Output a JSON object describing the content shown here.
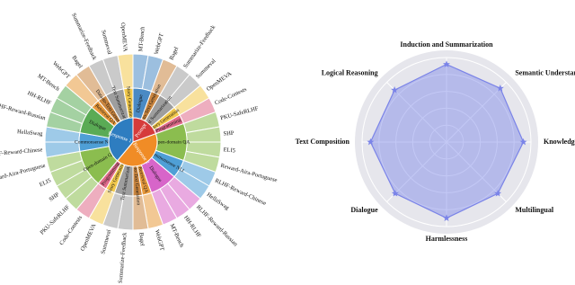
{
  "chart_data": [
    {
      "type": "sunburst",
      "children": [
        {
          "name": "Prompt",
          "color": "#d63b3b",
          "children": [
            {
              "name": "Dialogue",
              "color": "#4a8ac4",
              "children": [
                {
                  "name": "MT-Bench",
                  "value": 1
                },
                {
                  "name": "WebGPT",
                  "value": 1
                }
              ]
            },
            {
              "name": "Data-to-Text Generation",
              "color": "#c9853f",
              "children": [
                {
                  "name": "Bagel",
                  "value": 1
                }
              ]
            },
            {
              "name": "Text Summarization",
              "color": "#9e9e9e",
              "children": [
                {
                  "name": "Summarize-Feedback",
                  "value": 1
                },
                {
                  "name": "Summeval",
                  "value": 1
                }
              ]
            },
            {
              "name": "Story Generation",
              "color": "#f2c94c",
              "children": [
                {
                  "name": "OpenMEVA",
                  "value": 1
                }
              ]
            },
            {
              "name": "Programming",
              "color": "#e06b8b",
              "children": [
                {
                  "name": "Code-Contests",
                  "value": 1
                }
              ]
            }
          ]
        },
        {
          "name": "Response 2",
          "color": "#f08c26",
          "children": [
            {
              "name": "Open-domain QA",
              "color": "#8bbd4f",
              "children": [
                {
                  "name": "PKU-SafeRLHF",
                  "value": 1
                },
                {
                  "name": "SHP",
                  "value": 1
                },
                {
                  "name": "ELI5",
                  "value": 1
                },
                {
                  "name": "Reward-Aira-Portuguese",
                  "value": 1
                }
              ]
            },
            {
              "name": "Commonsense NLI",
              "color": "#4f9fd6",
              "children": [
                {
                  "name": "RLHF-Reward-Chinese",
                  "value": 1
                },
                {
                  "name": "HellaSwag",
                  "value": 1
                }
              ]
            },
            {
              "name": "Dialogue",
              "color": "#d765c9",
              "children": [
                {
                  "name": "RLHF-Reward-Russian",
                  "value": 1
                },
                {
                  "name": "HH-RLHF",
                  "value": 1
                },
                {
                  "name": "MT-Bench",
                  "value": 1
                }
              ]
            },
            {
              "name": "Retrieval QA",
              "color": "#e89a3c",
              "children": [
                {
                  "name": "WebGPT",
                  "value": 1
                }
              ]
            },
            {
              "name": "Data-to-Text Generation",
              "color": "#c9853f",
              "children": [
                {
                  "name": "Bagel",
                  "value": 1
                }
              ]
            },
            {
              "name": "Text Summarization",
              "color": "#9e9e9e",
              "children": [
                {
                  "name": "Summarize-Feedback",
                  "value": 1
                },
                {
                  "name": "Summeval",
                  "value": 1
                }
              ]
            },
            {
              "name": "Story Generation",
              "color": "#f2c94c",
              "children": [
                {
                  "name": "OpenMEVA",
                  "value": 1
                }
              ]
            },
            {
              "name": "Programming",
              "color": "#e06b8b",
              "children": [
                {
                  "name": "Code-Contests",
                  "value": 1
                }
              ]
            }
          ]
        },
        {
          "name": "Response 1",
          "color": "#2e7dc0",
          "children": [
            {
              "name": "Open-domain QA",
              "color": "#8bbd4f",
              "children": [
                {
                  "name": "PKU-SafeRLHF",
                  "value": 1
                },
                {
                  "name": "SHP",
                  "value": 1
                },
                {
                  "name": "ELI5",
                  "value": 1
                },
                {
                  "name": "Reward-Aira-Portuguese",
                  "value": 1
                }
              ]
            },
            {
              "name": "Commonsense NLI",
              "color": "#4f9fd6",
              "children": [
                {
                  "name": "RLHF-Reward-Chinese",
                  "value": 1
                },
                {
                  "name": "HellaSwag",
                  "value": 1
                }
              ]
            },
            {
              "name": "Dialogue",
              "color": "#5aab55",
              "children": [
                {
                  "name": "RLHF-Reward-Russian",
                  "value": 1
                },
                {
                  "name": "HH-RLHF",
                  "value": 1
                },
                {
                  "name": "MT-Bench",
                  "value": 1
                }
              ]
            },
            {
              "name": "Retrieval QA",
              "color": "#e89a3c",
              "children": [
                {
                  "name": "WebGPT",
                  "value": 1
                }
              ]
            },
            {
              "name": "Data-to-Text Generation",
              "color": "#c9853f",
              "children": [
                {
                  "name": "Bagel",
                  "value": 1
                }
              ]
            },
            {
              "name": "Text Summarization",
              "color": "#9e9e9e",
              "children": [
                {
                  "name": "Summarize-Feedback",
                  "value": 1
                },
                {
                  "name": "Summeval",
                  "value": 1
                }
              ]
            },
            {
              "name": "Story Generation",
              "color": "#f2c94c",
              "children": [
                {
                  "name": "OpenMEVA",
                  "value": 1
                }
              ]
            }
          ]
        }
      ]
    },
    {
      "type": "radar",
      "categories": [
        "Induction and Summarization",
        "Semantic Understanding",
        "Knowledge QA",
        "Multilingual",
        "Harmlessness",
        "Dialogue",
        "Text Composition",
        "Logical Reasoning"
      ],
      "values": [
        0.92,
        0.9,
        0.91,
        0.86,
        0.9,
        0.86,
        0.9,
        0.87
      ],
      "color": "#7b84e8",
      "rlim": [
        0,
        1
      ],
      "rticks": [
        0.2,
        0.4,
        0.6,
        0.8,
        1
      ],
      "grid": true
    }
  ]
}
